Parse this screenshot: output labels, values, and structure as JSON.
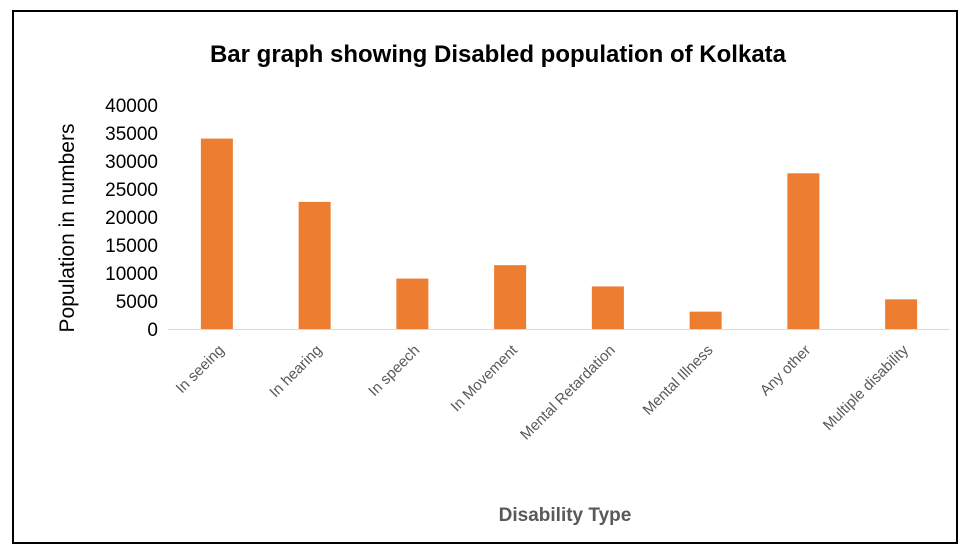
{
  "chart_data": {
    "type": "bar",
    "title": "Bar graph showing Disabled population of Kolkata",
    "xlabel": "Disability Type",
    "ylabel": "Population in numbers",
    "categories": [
      "In seeing",
      "In hearing",
      "In speech",
      "In Movement",
      "Mental Retardation",
      "Mental Illness",
      "Any other",
      "Multiple disability"
    ],
    "values": [
      34000,
      22700,
      9000,
      11400,
      7600,
      3100,
      27800,
      5300
    ],
    "ylim": [
      0,
      40000
    ],
    "yticks": [
      0,
      5000,
      10000,
      15000,
      20000,
      25000,
      30000,
      35000,
      40000
    ],
    "grid": false,
    "legend": "none",
    "bar_color": "#ED7D31",
    "axis_color": "#D9D9D9"
  }
}
